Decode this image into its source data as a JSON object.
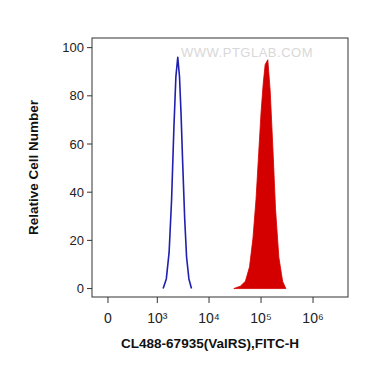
{
  "chart_data": {
    "type": "area",
    "x_label": "CL488-67935(ValRS),FITC-H",
    "y_label": "Relative Cell Number",
    "annotations": [
      "WWW.PTGLAB.COM"
    ],
    "log": "x",
    "xlim": [
      -175,
      4700000
    ],
    "xticks": [
      0,
      {
        "value": 1000,
        "label": "10³"
      },
      {
        "value": 10000,
        "label": "10⁴"
      },
      {
        "value": 100000,
        "label": "10⁵"
      },
      {
        "value": 1000000,
        "label": "10⁶"
      }
    ],
    "ylim": [
      -3.5,
      104
    ],
    "yticks": [
      0,
      20,
      40,
      60,
      80,
      100
    ],
    "grid": false,
    "series": [
      {
        "type": "line",
        "color": "#1f1fb0",
        "x": [
          1300,
          1500,
          1700,
          1900,
          2100,
          2300,
          2500,
          2700,
          2900,
          3100,
          3400,
          3700,
          4100,
          4600
        ],
        "values": [
          0,
          4,
          15,
          37,
          66,
          88,
          96,
          88,
          72,
          53,
          29,
          13,
          4,
          0
        ]
      },
      {
        "type": "area",
        "color": "#d40000",
        "x": [
          30000,
          40000,
          50000,
          60000,
          70000,
          80000,
          90000,
          100000,
          110000,
          120000,
          135000,
          150000,
          170000,
          190000,
          220000,
          260000,
          300000
        ],
        "values": [
          0,
          1,
          3,
          9,
          21,
          37,
          56,
          73,
          85,
          93,
          95,
          82,
          57,
          33,
          13,
          3,
          0
        ]
      }
    ]
  }
}
